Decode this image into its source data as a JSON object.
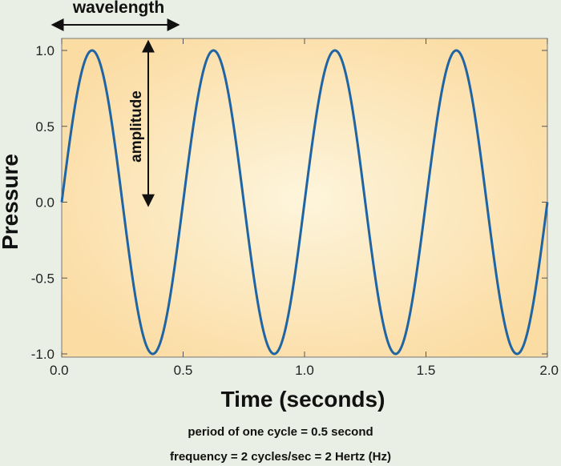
{
  "chart_data": {
    "type": "line",
    "xlabel": "Time (seconds)",
    "ylabel": "Pressure",
    "xlim": [
      0.0,
      2.0
    ],
    "ylim": [
      -1.0,
      1.0
    ],
    "xticks": [
      "0.0",
      "0.5",
      "1.0",
      "1.5",
      "2.0"
    ],
    "yticks": [
      "1.0",
      "0.5",
      "0.0",
      "-0.5",
      "-1.0"
    ],
    "series": [
      {
        "function": "sin(2*pi*2*t)",
        "frequency_hz": 2,
        "period_s": 0.5,
        "amplitude": 1.0,
        "color": "#1f64a3"
      }
    ],
    "annotations": {
      "wavelength": "wavelength",
      "amplitude": "amplitude"
    },
    "captions": {
      "period": "period of one cycle = 0.5 second",
      "frequency": "frequency = 2 cycles/sec = 2 Hertz (Hz)"
    },
    "grid": false,
    "colors": {
      "plot_background_center": "#fdf5dc",
      "plot_background_edge": "#fbdca3",
      "page_background": "#e9efe4",
      "curve": "#1f64a3"
    }
  }
}
